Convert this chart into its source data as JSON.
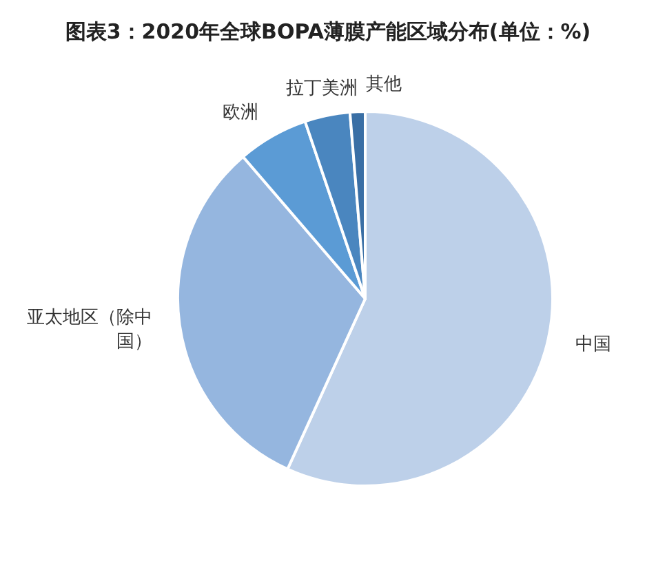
{
  "chart_data": {
    "type": "pie",
    "title": "图表3：2020年全球BOPA薄膜产能区域分布(单位：%)",
    "categories": [
      "中国",
      "亚太地区（除中国）",
      "欧洲",
      "拉丁美洲",
      "其他"
    ],
    "values": [
      56.8,
      31.9,
      6.1,
      3.9,
      1.3
    ],
    "colors": [
      "#bdd0e9",
      "#95b6df",
      "#5b9bd5",
      "#4a86bf",
      "#3a6fa5"
    ]
  }
}
